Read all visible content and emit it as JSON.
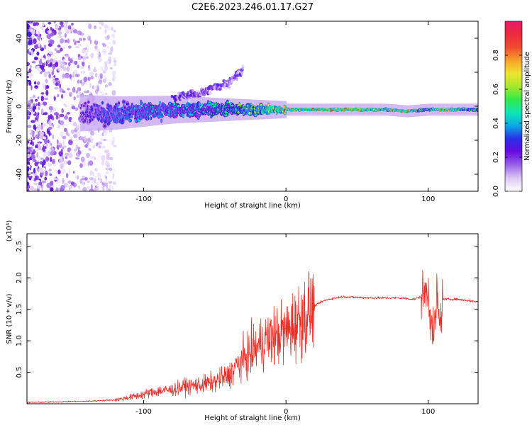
{
  "figure_title": "C2E6.2023.246.01.17.G27",
  "colors": {
    "spectrogram_cmap": [
      "#ffffff",
      "#dcc6f3",
      "#9a63ea",
      "#6a0be0",
      "#2a2ee8",
      "#0aa7e6",
      "#0fe6b8",
      "#30e84a",
      "#a4e82a",
      "#f0e430",
      "#f7a22a",
      "#ef4b2f",
      "#ec2a3c",
      "#e81a69"
    ],
    "snr_line": "#e8302a",
    "axes": "#000000"
  },
  "chart_data": [
    {
      "type": "heatmap",
      "title": "",
      "xlabel": "Height of straight line (km)",
      "ylabel": "Frequency (Hz)",
      "xlim": [
        -182,
        135
      ],
      "ylim": [
        -50,
        50
      ],
      "x_ticks": [
        -100,
        0,
        100
      ],
      "y_ticks": [
        -40,
        -20,
        0,
        20,
        40
      ],
      "x_tick_labels": [
        "-100",
        "0",
        "100"
      ],
      "y_tick_labels": [
        "-40",
        "-20",
        "0",
        "20",
        "40"
      ],
      "colorbar": {
        "label": "Normalized spectral amplitude",
        "range": [
          0,
          1
        ],
        "ticks": [
          0.0,
          0.2,
          0.4,
          0.6,
          0.8
        ],
        "tick_labels": [
          "0.0",
          "0.2",
          "0.4",
          "0.6",
          "0.8"
        ]
      },
      "features": {
        "noise_region_x": [
          -182,
          -120
        ],
        "signal_trace": [
          {
            "x": -145,
            "freq": -4,
            "amplitude": 0.25
          },
          {
            "x": -120,
            "freq": -4,
            "amplitude": 0.35
          },
          {
            "x": -100,
            "freq": -3,
            "amplitude": 0.4
          },
          {
            "x": -80,
            "freq": -2,
            "amplitude": 0.42
          },
          {
            "x": -60,
            "freq": -2,
            "amplitude": 0.45
          },
          {
            "x": -40,
            "freq": -2,
            "amplitude": 0.5
          },
          {
            "x": -20,
            "freq": -2,
            "amplitude": 0.7
          },
          {
            "x": 0,
            "freq": -2,
            "amplitude": 0.85
          },
          {
            "x": 20,
            "freq": -2,
            "amplitude": 0.92
          },
          {
            "x": 50,
            "freq": -2,
            "amplitude": 0.95
          },
          {
            "x": 70,
            "freq": -2,
            "amplitude": 0.75
          },
          {
            "x": 85,
            "freq": -3,
            "amplitude": 0.9
          },
          {
            "x": 100,
            "freq": -2,
            "amplitude": 0.55
          },
          {
            "x": 108,
            "freq": -2,
            "amplitude": 0.95
          },
          {
            "x": 135,
            "freq": -2,
            "amplitude": 0.5
          }
        ],
        "upper_branch": [
          {
            "x": -80,
            "freq": 4
          },
          {
            "x": -60,
            "freq": 8
          },
          {
            "x": -40,
            "freq": 14
          },
          {
            "x": -30,
            "freq": 22
          }
        ]
      }
    },
    {
      "type": "line",
      "title": "",
      "xlabel": "Height of straight line (km)",
      "ylabel": "SNR (10 * v/v)",
      "y_scale_label": "(x10⁴)",
      "y_multiplier": 10000,
      "xlim": [
        -182,
        135
      ],
      "ylim": [
        0,
        2.7
      ],
      "x_ticks": [
        -100,
        0,
        100
      ],
      "y_ticks": [
        0.5,
        1.0,
        1.5,
        2.0,
        2.5
      ],
      "x_tick_labels": [
        "-100",
        "0",
        "100"
      ],
      "y_tick_labels": [
        "0.5",
        "1.0",
        "1.5",
        "2.0",
        "2.5"
      ],
      "series": [
        {
          "x": [
            -182,
            -160,
            -140,
            -120,
            -110,
            -100,
            -90,
            -80,
            -70,
            -60,
            -50,
            -40,
            -35,
            -30,
            -25,
            -20,
            -15,
            -10,
            -5,
            0,
            5,
            10,
            15,
            20,
            25,
            30,
            35,
            40,
            50,
            60,
            70,
            80,
            90,
            95,
            100,
            102,
            104,
            106,
            108,
            110,
            120,
            135
          ],
          "values": [
            0.02,
            0.03,
            0.04,
            0.06,
            0.1,
            0.15,
            0.2,
            0.22,
            0.28,
            0.3,
            0.35,
            0.45,
            0.6,
            0.7,
            0.8,
            0.9,
            1.0,
            1.05,
            1.1,
            1.15,
            1.25,
            1.35,
            1.45,
            1.55,
            1.62,
            1.66,
            1.68,
            1.7,
            1.69,
            1.68,
            1.68,
            1.68,
            1.66,
            1.7,
            1.8,
            1.3,
            1.0,
            1.75,
            1.2,
            1.66,
            1.66,
            1.62
          ]
        }
      ]
    }
  ]
}
